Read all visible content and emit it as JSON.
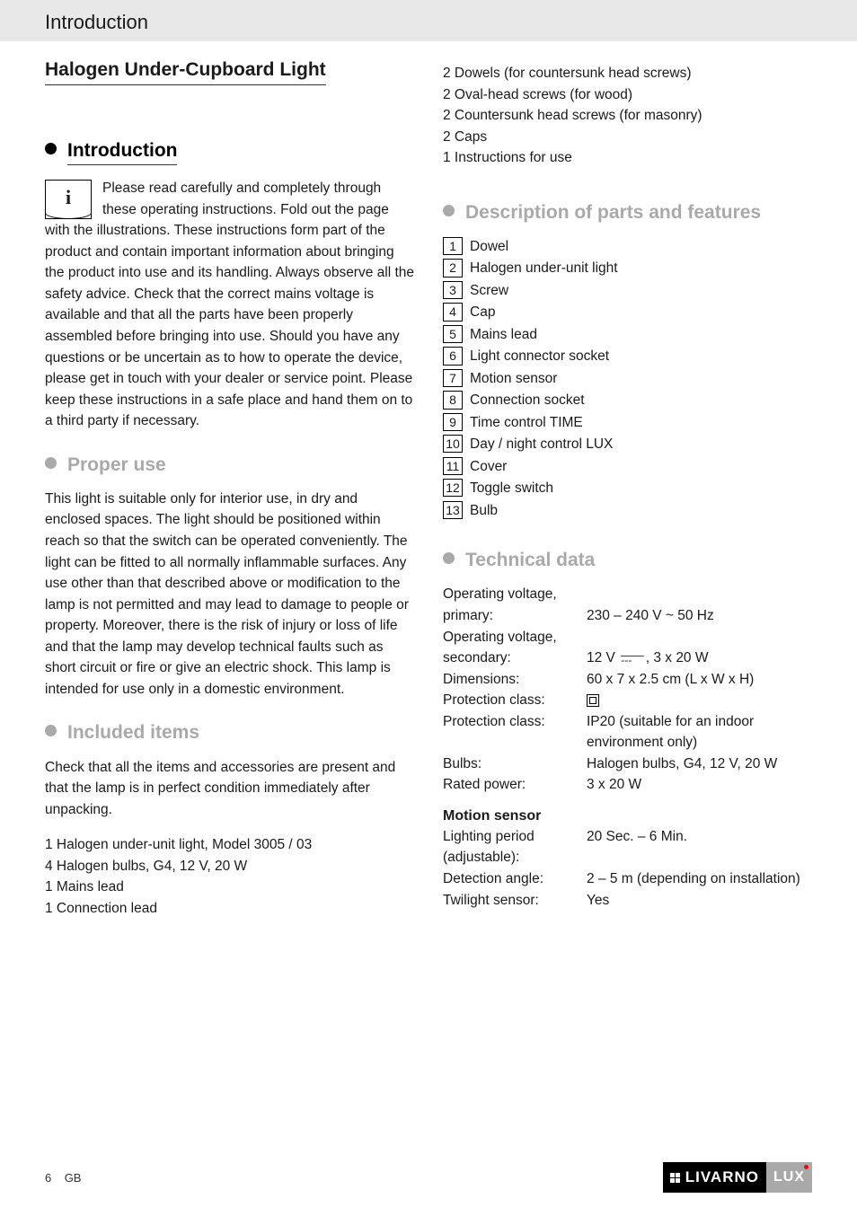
{
  "header": {
    "breadcrumb": "Introduction"
  },
  "title": "Halogen Under-Cupboard Light",
  "sections": {
    "introduction": {
      "heading": "Introduction",
      "body": "Please read carefully and completely through these operating instructions. Fold out the page with the illustrations. These instructions form part of the product and contain important information about bringing the product into use and its handling. Always observe all the safety advice. Check that the correct mains voltage is available and that all the parts have been properly assembled before bringing into use. Should you have any questions or be uncertain as to how to operate the device, please get in touch with your dealer or service point. Please keep these instructions in a safe place and hand them on to a third party if necessary."
    },
    "proper_use": {
      "heading": "Proper use",
      "body": "This light is suitable only for interior use, in dry and enclosed spaces. The light should be positioned within reach so that the switch can be operated conveniently. The light can be fitted to all normally inflammable surfaces. Any use other than that described above or modification to the lamp is not permitted and may lead to damage to people or property. Moreover, there is the risk of injury or loss of life and that the lamp may develop technical faults such as short circuit or fire or give an electric shock. This lamp is intended for use only in a domestic environment."
    },
    "included": {
      "heading": "Included items",
      "intro": "Check that all the items and accessories are present and that the lamp is in perfect condition immediately after unpacking.",
      "items_left": [
        "1 Halogen under-unit light, Model 3005 / 03",
        "4 Halogen bulbs, G4, 12 V, 20 W",
        "1 Mains lead",
        "1 Connection lead"
      ],
      "items_right": [
        "2 Dowels (for countersunk head screws)",
        "2 Oval-head screws (for wood)",
        "2 Countersunk head screws (for masonry)",
        "2 Caps",
        "1 Instructions for use"
      ]
    },
    "parts": {
      "heading": "Description of parts and features",
      "list": [
        {
          "n": "1",
          "label": "Dowel"
        },
        {
          "n": "2",
          "label": "Halogen under-unit light"
        },
        {
          "n": "3",
          "label": "Screw"
        },
        {
          "n": "4",
          "label": "Cap"
        },
        {
          "n": "5",
          "label": "Mains lead"
        },
        {
          "n": "6",
          "label": "Light connector socket"
        },
        {
          "n": "7",
          "label": "Motion sensor"
        },
        {
          "n": "8",
          "label": "Connection socket"
        },
        {
          "n": "9",
          "label": "Time control TIME"
        },
        {
          "n": "10",
          "label": "Day / night control LUX"
        },
        {
          "n": "11",
          "label": "Cover"
        },
        {
          "n": "12",
          "label": "Toggle switch"
        },
        {
          "n": "13",
          "label": "Bulb"
        }
      ]
    },
    "technical": {
      "heading": "Technical data",
      "rows": [
        {
          "label": "Operating voltage, primary:",
          "value": "230 – 240 V ~ 50 Hz"
        },
        {
          "label": "Operating voltage, secondary:",
          "value_parts": [
            "12 V ",
            "DC_SYMBOL",
            ", 3 x 20 W"
          ]
        },
        {
          "label": "Dimensions:",
          "value": "60 x 7 x 2.5 cm (L x W x H)"
        },
        {
          "label": "Protection class:",
          "value_icon": "double-square"
        },
        {
          "label": "Protection class:",
          "value": "IP20 (suitable for an indoor environment only)"
        },
        {
          "label": "Bulbs:",
          "value": "Halogen bulbs, G4, 12 V, 20 W"
        },
        {
          "label": "Rated power:",
          "value": "3 x 20 W"
        }
      ],
      "motion_heading": "Motion sensor",
      "motion_rows": [
        {
          "label": "Lighting period (adjustable):",
          "value": "20 Sec. – 6 Min."
        },
        {
          "label": "Detection angle:",
          "value": "2 – 5 m (depending on installation)"
        },
        {
          "label": "Twilight sensor:",
          "value": "Yes"
        }
      ]
    }
  },
  "footer": {
    "page": "6",
    "region": "GB",
    "brand_main": "LIVARNO",
    "brand_suffix": "LUX"
  },
  "style": {
    "heading_colors": {
      "black": "#000000",
      "grey": "#a9a9a9"
    },
    "header_bg": "#e8e8e8",
    "brand_bg_left": "#000000",
    "brand_bg_right": "#a9a9a9"
  }
}
